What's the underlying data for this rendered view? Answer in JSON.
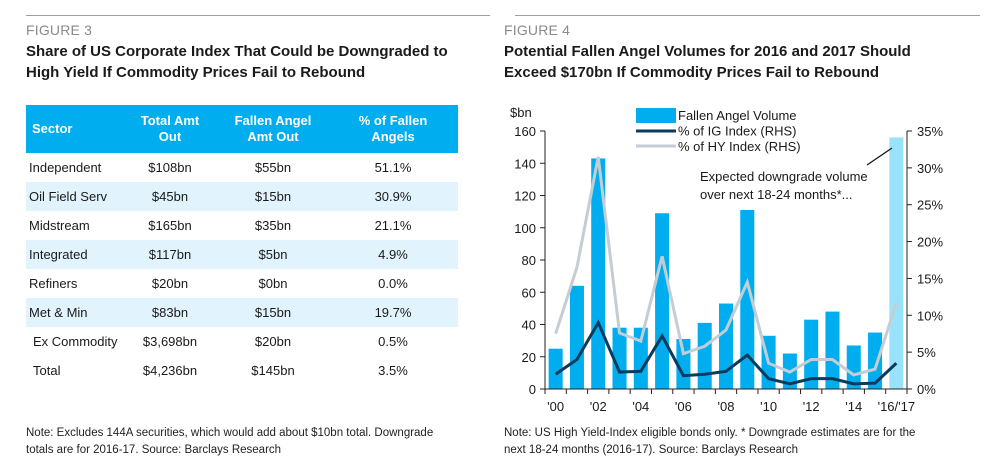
{
  "figure3": {
    "label": "FIGURE 3",
    "title_line1": "Share of US Corporate Index That Could be Downgraded to",
    "title_line2": "High Yield If Commodity Prices Fail to Rebound",
    "table": {
      "headers": [
        {
          "line1": "Sector",
          "line2": ""
        },
        {
          "line1": "Total Amt",
          "line2": "Out"
        },
        {
          "line1": "Fallen Angel",
          "line2": "Amt Out"
        },
        {
          "line1": "% of Fallen",
          "line2": "Angels"
        }
      ],
      "rows": [
        {
          "sector": "Independent",
          "total": "$108bn",
          "fallen": "$55bn",
          "pct": "51.1%"
        },
        {
          "sector": "Oil Field Serv",
          "total": "$45bn",
          "fallen": "$15bn",
          "pct": "30.9%"
        },
        {
          "sector": "Midstream",
          "total": "$165bn",
          "fallen": "$35bn",
          "pct": "21.1%"
        },
        {
          "sector": "Integrated",
          "total": "$117bn",
          "fallen": "$5bn",
          "pct": "4.9%"
        },
        {
          "sector": "Refiners",
          "total": "$20bn",
          "fallen": "$0bn",
          "pct": "0.0%"
        },
        {
          "sector": "Met & Min",
          "total": "$83bn",
          "fallen": "$15bn",
          "pct": "19.7%"
        },
        {
          "sector": "Ex Commodity",
          "total": "$3,698bn",
          "fallen": "$20bn",
          "pct": "0.5%"
        },
        {
          "sector": "Total",
          "total": "$4,236bn",
          "fallen": "$145bn",
          "pct": "3.5%"
        }
      ]
    },
    "note_line1": "Note: Excludes 144A securities, which would add about $10bn total. Downgrade",
    "note_line2": "totals are for 2016-17. Source: Barclays Research"
  },
  "figure4": {
    "label": "FIGURE 4",
    "title_line1": "Potential Fallen Angel Volumes for 2016 and 2017 Should",
    "title_line2": "Exceed $170bn If Commodity Prices Fail to Rebound",
    "note_line1": "Note: US High Yield-Index eligible bonds only. * Downgrade estimates are for the",
    "note_line2": "next 18-24 months (2016-17). Source: Barclays Research"
  },
  "colors": {
    "header_blue": "#00AEEF",
    "row_shade": "#E1F3FC",
    "bar_blue": "#00AEEF",
    "bar_expected": "#99E3FA",
    "ig_line": "#0B3A5C",
    "hy_line": "#C5CDD4"
  },
  "chart_data": {
    "type": "bar",
    "title": "Potential Fallen Angel Volumes for 2016 and 2017 Should Exceed $170bn If Commodity Prices Fail to Rebound",
    "ylabel": "$bn",
    "ylabel_right": "",
    "ylim": [
      0,
      160
    ],
    "yticks": [
      0,
      20,
      40,
      60,
      80,
      100,
      120,
      140,
      160
    ],
    "ylim_right": [
      0,
      35
    ],
    "yticks_right": [
      "0%",
      "5%",
      "10%",
      "15%",
      "20%",
      "25%",
      "30%",
      "35%"
    ],
    "yticks_right_values": [
      0,
      5,
      10,
      15,
      20,
      25,
      30,
      35
    ],
    "categories": [
      "2000",
      "2001",
      "2002",
      "2003",
      "2004",
      "2005",
      "2006",
      "2007",
      "2008",
      "2009",
      "2010",
      "2011",
      "2012",
      "2013",
      "2014",
      "2015",
      "2016/17"
    ],
    "xtick_labels": [
      "'00",
      "",
      "'02",
      "",
      "'04",
      "",
      "'06",
      "",
      "'08",
      "",
      "'10",
      "",
      "'12",
      "",
      "'14",
      "",
      "'16/'17"
    ],
    "series": [
      {
        "name": "Fallen Angel Volume",
        "type": "bar",
        "axis": "left",
        "values": [
          25,
          64,
          143,
          38,
          38,
          109,
          31,
          41,
          53,
          111,
          33,
          22,
          43,
          48,
          27,
          35,
          156
        ]
      },
      {
        "name": "% of IG Index (RHS)",
        "type": "line",
        "axis": "right",
        "values": [
          2.0,
          4.0,
          9.0,
          2.3,
          2.4,
          7.2,
          1.8,
          2.0,
          2.4,
          4.6,
          1.4,
          0.7,
          1.4,
          1.4,
          0.7,
          0.8,
          3.5
        ]
      },
      {
        "name": "% of HY Index (RHS)",
        "type": "line",
        "axis": "right",
        "values": [
          7.5,
          16.5,
          31.5,
          7.6,
          6.5,
          18.0,
          4.8,
          5.8,
          8.0,
          14.5,
          3.5,
          2.3,
          4.0,
          4.0,
          1.9,
          2.7,
          11.7
        ]
      }
    ],
    "legend": {
      "placement": "top-center",
      "entries": [
        "Fallen Angel Volume",
        "% of IG Index (RHS)",
        "% of HY Index (RHS)"
      ]
    },
    "annotation": {
      "line1": "Expected downgrade volume",
      "line2": "over next 18-24 months*...",
      "target": "2016/17"
    },
    "grid": false
  }
}
